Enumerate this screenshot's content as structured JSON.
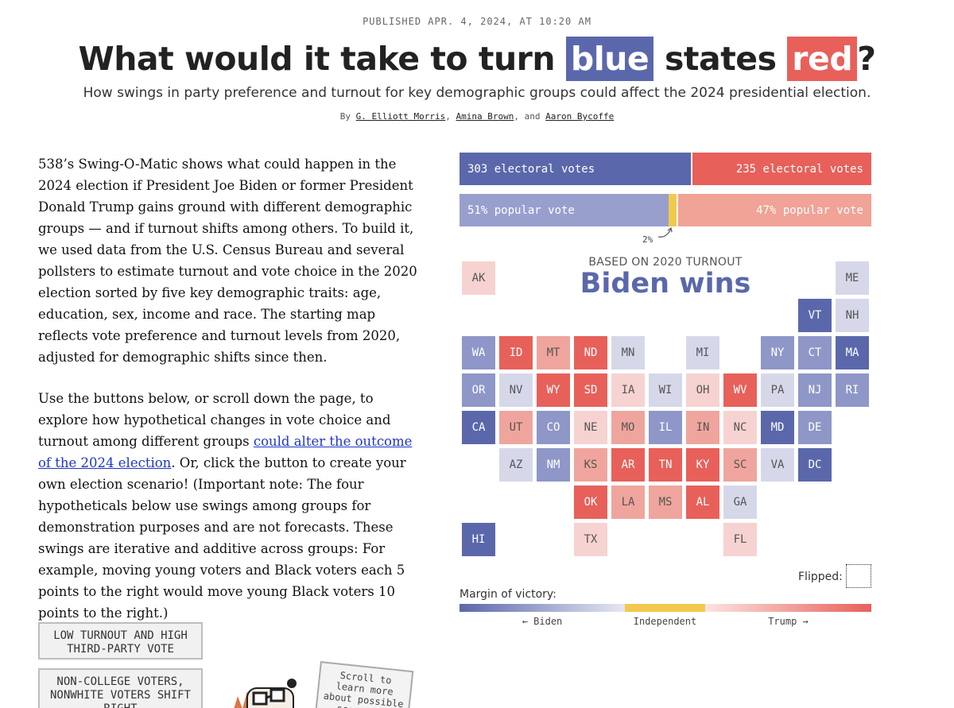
{
  "header": {
    "dateline": "PUBLISHED APR. 4, 2024, AT 10:20 AM",
    "title_pre": "What would it take to turn",
    "title_blue": "blue",
    "title_mid": "states",
    "title_red": "red",
    "title_post": "?",
    "dek": "How swings in party preference and turnout for key demographic groups could affect the 2024 presidential election.",
    "byline_prefix": "By",
    "authors": [
      "G. Elliott Morris",
      "Amina Brown",
      "Aaron Bycoffe"
    ],
    "byline_sep": ",",
    "byline_and": ", and"
  },
  "article": {
    "paragraph1": "538’s Swing-O-Matic shows what could happen in the 2024 election if President Joe Biden or former President Donald Trump gains ground with different demographic groups — and if turnout shifts among others. To build it, we used data from the U.S. Census Bureau and several pollsters to estimate turnout and vote choice in the 2020 election sorted by five key demographic traits: age, education, sex, income and race. The starting map reflects vote preference and turnout levels from 2020, adjusted for demographic shifts since then.",
    "paragraph2_before": "Use the buttons below, or scroll down the page, to explore how hypothetical changes in vote choice and turnout among different groups ",
    "paragraph2_link": "could alter the outcome of the 2024 election",
    "paragraph2_after": ". Or, click the button to create your own election scenario! (Important note: The four hypotheticals below use swings among groups for demonstration purposes and are not forecasts. These swings are iterative and additive across groups: For example, moving young voters and Black voters each 5 points to the right would move young Black voters 10 points to the right.)"
  },
  "scenarios": {
    "button1": "LOW TURNOUT AND HIGH THIRD-PARTY VOTE",
    "button2": "NON-COLLEGE VOTERS, NONWHITE VOTERS SHIFT RIGHT",
    "scroll_note": "Scroll to learn more about possible scenarios"
  },
  "results": {
    "ev_dem_label": "303 electoral votes",
    "ev_rep_label": "235 electoral votes",
    "ev_dem": 303,
    "ev_rep": 235,
    "pv_dem_label": "51% popular vote",
    "pv_rep_label": "47% popular vote",
    "pv_dem": 51,
    "pv_ind": 2,
    "pv_rep": 47,
    "pv_ind_label": "2%",
    "turnout_label": "BASED ON 2020 TURNOUT",
    "winner": "Biden wins"
  },
  "colors": {
    "d3": "#5a68ab",
    "d2": "#8f97c8",
    "d1": "#d6d8ea",
    "r1": "#f6d3d0",
    "r2": "#efa59d",
    "r3": "#e8605a",
    "ind": "#f2c94c"
  },
  "states": [
    {
      "abbr": "AK",
      "lean": "r1",
      "col": 0,
      "row": 0
    },
    {
      "abbr": "ME",
      "lean": "d1",
      "col": 10,
      "row": 0
    },
    {
      "abbr": "VT",
      "lean": "d3",
      "col": 9,
      "row": 1
    },
    {
      "abbr": "NH",
      "lean": "d1",
      "col": 10,
      "row": 1
    },
    {
      "abbr": "WA",
      "lean": "d2",
      "col": 0,
      "row": 2
    },
    {
      "abbr": "ID",
      "lean": "r3",
      "col": 1,
      "row": 2
    },
    {
      "abbr": "MT",
      "lean": "r2",
      "col": 2,
      "row": 2
    },
    {
      "abbr": "ND",
      "lean": "r3",
      "col": 3,
      "row": 2
    },
    {
      "abbr": "MN",
      "lean": "d1",
      "col": 4,
      "row": 2
    },
    {
      "abbr": "MI",
      "lean": "d1",
      "col": 6,
      "row": 2
    },
    {
      "abbr": "NY",
      "lean": "d2",
      "col": 8,
      "row": 2
    },
    {
      "abbr": "CT",
      "lean": "d2",
      "col": 9,
      "row": 2
    },
    {
      "abbr": "MA",
      "lean": "d3",
      "col": 10,
      "row": 2
    },
    {
      "abbr": "OR",
      "lean": "d2",
      "col": 0,
      "row": 3
    },
    {
      "abbr": "NV",
      "lean": "d1",
      "col": 1,
      "row": 3
    },
    {
      "abbr": "WY",
      "lean": "r3",
      "col": 2,
      "row": 3
    },
    {
      "abbr": "SD",
      "lean": "r3",
      "col": 3,
      "row": 3
    },
    {
      "abbr": "IA",
      "lean": "r1",
      "col": 4,
      "row": 3
    },
    {
      "abbr": "WI",
      "lean": "d1",
      "col": 5,
      "row": 3
    },
    {
      "abbr": "OH",
      "lean": "r1",
      "col": 6,
      "row": 3
    },
    {
      "abbr": "WV",
      "lean": "r3",
      "col": 7,
      "row": 3
    },
    {
      "abbr": "PA",
      "lean": "d1",
      "col": 8,
      "row": 3
    },
    {
      "abbr": "NJ",
      "lean": "d2",
      "col": 9,
      "row": 3
    },
    {
      "abbr": "RI",
      "lean": "d2",
      "col": 10,
      "row": 3
    },
    {
      "abbr": "CA",
      "lean": "d3",
      "col": 0,
      "row": 4
    },
    {
      "abbr": "UT",
      "lean": "r2",
      "col": 1,
      "row": 4
    },
    {
      "abbr": "CO",
      "lean": "d2",
      "col": 2,
      "row": 4
    },
    {
      "abbr": "NE",
      "lean": "r1",
      "col": 3,
      "row": 4
    },
    {
      "abbr": "MO",
      "lean": "r2",
      "col": 4,
      "row": 4
    },
    {
      "abbr": "IL",
      "lean": "d2",
      "col": 5,
      "row": 4
    },
    {
      "abbr": "IN",
      "lean": "r2",
      "col": 6,
      "row": 4
    },
    {
      "abbr": "NC",
      "lean": "r1",
      "col": 7,
      "row": 4
    },
    {
      "abbr": "MD",
      "lean": "d3",
      "col": 8,
      "row": 4
    },
    {
      "abbr": "DE",
      "lean": "d2",
      "col": 9,
      "row": 4
    },
    {
      "abbr": "AZ",
      "lean": "d1",
      "col": 1,
      "row": 5
    },
    {
      "abbr": "NM",
      "lean": "d2",
      "col": 2,
      "row": 5
    },
    {
      "abbr": "KS",
      "lean": "r2",
      "col": 3,
      "row": 5
    },
    {
      "abbr": "AR",
      "lean": "r3",
      "col": 4,
      "row": 5
    },
    {
      "abbr": "TN",
      "lean": "r3",
      "col": 5,
      "row": 5
    },
    {
      "abbr": "KY",
      "lean": "r3",
      "col": 6,
      "row": 5
    },
    {
      "abbr": "SC",
      "lean": "r2",
      "col": 7,
      "row": 5
    },
    {
      "abbr": "VA",
      "lean": "d1",
      "col": 8,
      "row": 5
    },
    {
      "abbr": "DC",
      "lean": "d3",
      "col": 9,
      "row": 5
    },
    {
      "abbr": "OK",
      "lean": "r3",
      "col": 3,
      "row": 6
    },
    {
      "abbr": "LA",
      "lean": "r2",
      "col": 4,
      "row": 6
    },
    {
      "abbr": "MS",
      "lean": "r2",
      "col": 5,
      "row": 6
    },
    {
      "abbr": "AL",
      "lean": "r3",
      "col": 6,
      "row": 6
    },
    {
      "abbr": "GA",
      "lean": "d1",
      "col": 7,
      "row": 6
    },
    {
      "abbr": "HI",
      "lean": "d3",
      "col": 0,
      "row": 7
    },
    {
      "abbr": "TX",
      "lean": "r1",
      "col": 3,
      "row": 7
    },
    {
      "abbr": "FL",
      "lean": "r1",
      "col": 7,
      "row": 7
    }
  ],
  "legend": {
    "flipped_label": "Flipped:",
    "margin_label": "Margin of victory:",
    "biden": "← Biden",
    "independent": "Independent",
    "trump": "Trump →"
  }
}
